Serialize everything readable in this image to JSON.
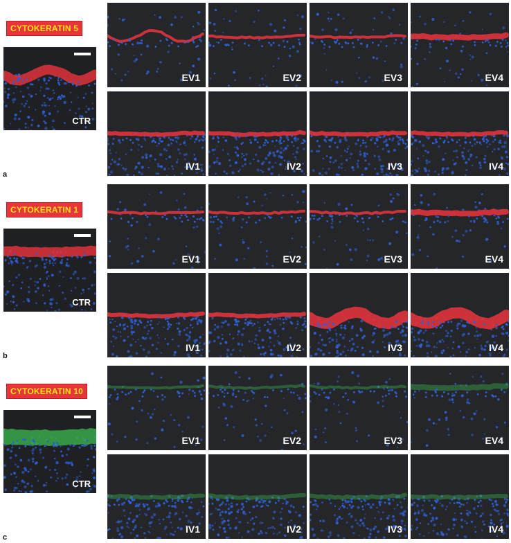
{
  "panels": [
    {
      "marker": "CYTOKERATIN 5",
      "panel_letter": "a",
      "control_label": "CTR",
      "stain_color": "#e0333b",
      "ev": [
        "EV1",
        "EV2",
        "EV3",
        "EV4"
      ],
      "iv": [
        "IV1",
        "IV2",
        "IV3",
        "IV4"
      ]
    },
    {
      "marker": "CYTOKERATIN 1",
      "panel_letter": "b",
      "control_label": "CTR",
      "stain_color": "#e0333b",
      "ev": [
        "EV1",
        "EV2",
        "EV3",
        "EV4"
      ],
      "iv": [
        "IV1",
        "IV2",
        "IV3",
        "IV4"
      ]
    },
    {
      "marker": "CYTOKERATIN 10",
      "panel_letter": "c",
      "control_label": "CTR",
      "stain_color": "#3aa84a",
      "ev": [
        "EV1",
        "EV2",
        "EV3",
        "EV4"
      ],
      "iv": [
        "IV1",
        "IV2",
        "IV3",
        "IV4"
      ]
    }
  ],
  "colors": {
    "marker_bg": "#e8353a",
    "marker_text": "#ffe21a",
    "nuclei": "#2f5fd0",
    "tile_bg": "#24262a"
  }
}
